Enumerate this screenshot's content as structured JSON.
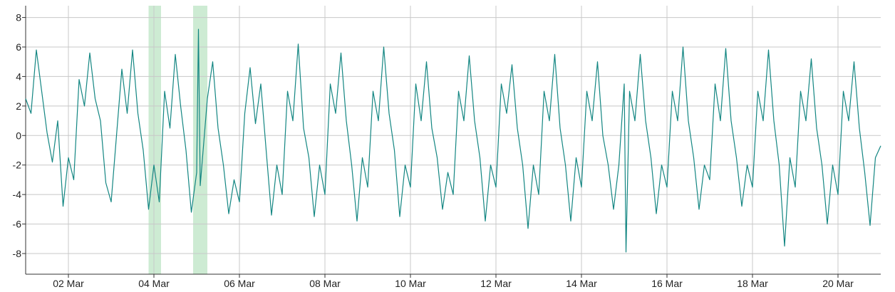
{
  "chart_data": {
    "type": "line",
    "title": "",
    "xlabel": "",
    "ylabel": "",
    "x_range": [
      "2024-03-01 00:00",
      "2024-03-21 00:00"
    ],
    "ylim": [
      -9.4,
      8.8
    ],
    "y_ticks": [
      -8,
      -6,
      -4,
      -2,
      0,
      2,
      4,
      6,
      8
    ],
    "y_tick_labels": [
      "-8",
      "-6",
      "-4",
      "-2",
      "0",
      "2",
      "4",
      "6",
      "8"
    ],
    "x_ticks": [
      "2024-03-02",
      "2024-03-04",
      "2024-03-06",
      "2024-03-08",
      "2024-03-10",
      "2024-03-12",
      "2024-03-14",
      "2024-03-16",
      "2024-03-18",
      "2024-03-20"
    ],
    "x_tick_labels": [
      "02 Mar",
      "04 Mar",
      "06 Mar",
      "08 Mar",
      "10 Mar",
      "12 Mar",
      "14 Mar",
      "16 Mar",
      "18 Mar",
      "20 Mar"
    ],
    "grid": true,
    "legend": "none",
    "highlight_bands": [
      {
        "start": "2024-03-03 21:00",
        "end": "2024-03-04 04:00"
      },
      {
        "start": "2024-03-04 22:00",
        "end": "2024-03-05 06:00"
      }
    ],
    "series": [
      {
        "color": "#138682",
        "points": [
          [
            "2024-03-01 00:00",
            2.5
          ],
          [
            "2024-03-01 03:00",
            1.5
          ],
          [
            "2024-03-01 06:00",
            5.8
          ],
          [
            "2024-03-01 09:00",
            3.0
          ],
          [
            "2024-03-01 12:00",
            0.2
          ],
          [
            "2024-03-01 15:00",
            -1.8
          ],
          [
            "2024-03-01 18:00",
            1.0
          ],
          [
            "2024-03-01 21:00",
            -4.8
          ],
          [
            "2024-03-02 00:00",
            -1.5
          ],
          [
            "2024-03-02 03:00",
            -3.0
          ],
          [
            "2024-03-02 06:00",
            3.8
          ],
          [
            "2024-03-02 09:00",
            2.0
          ],
          [
            "2024-03-02 12:00",
            5.6
          ],
          [
            "2024-03-02 15:00",
            2.5
          ],
          [
            "2024-03-02 18:00",
            1.0
          ],
          [
            "2024-03-02 21:00",
            -3.2
          ],
          [
            "2024-03-03 00:00",
            -4.5
          ],
          [
            "2024-03-03 03:00",
            0.0
          ],
          [
            "2024-03-03 06:00",
            4.5
          ],
          [
            "2024-03-03 09:00",
            1.5
          ],
          [
            "2024-03-03 12:00",
            5.8
          ],
          [
            "2024-03-03 15:00",
            1.5
          ],
          [
            "2024-03-03 18:00",
            -1.0
          ],
          [
            "2024-03-03 21:00",
            -5.0
          ],
          [
            "2024-03-04 00:00",
            -2.0
          ],
          [
            "2024-03-04 03:00",
            -4.5
          ],
          [
            "2024-03-04 06:00",
            3.0
          ],
          [
            "2024-03-04 09:00",
            0.5
          ],
          [
            "2024-03-04 12:00",
            5.5
          ],
          [
            "2024-03-04 15:00",
            2.0
          ],
          [
            "2024-03-04 18:00",
            -1.0
          ],
          [
            "2024-03-04 21:00",
            -5.2
          ],
          [
            "2024-03-05 00:00",
            -2.5
          ],
          [
            "2024-03-05 01:00",
            7.2
          ],
          [
            "2024-03-05 02:00",
            -3.4
          ],
          [
            "2024-03-05 06:00",
            2.5
          ],
          [
            "2024-03-05 09:00",
            5.0
          ],
          [
            "2024-03-05 12:00",
            0.5
          ],
          [
            "2024-03-05 15:00",
            -2.0
          ],
          [
            "2024-03-05 18:00",
            -5.3
          ],
          [
            "2024-03-05 21:00",
            -3.0
          ],
          [
            "2024-03-06 00:00",
            -4.5
          ],
          [
            "2024-03-06 03:00",
            1.5
          ],
          [
            "2024-03-06 06:00",
            4.6
          ],
          [
            "2024-03-06 09:00",
            0.8
          ],
          [
            "2024-03-06 12:00",
            3.5
          ],
          [
            "2024-03-06 15:00",
            -1.0
          ],
          [
            "2024-03-06 18:00",
            -5.4
          ],
          [
            "2024-03-06 21:00",
            -2.0
          ],
          [
            "2024-03-07 00:00",
            -4.0
          ],
          [
            "2024-03-07 03:00",
            3.0
          ],
          [
            "2024-03-07 06:00",
            1.0
          ],
          [
            "2024-03-07 09:00",
            6.2
          ],
          [
            "2024-03-07 12:00",
            0.5
          ],
          [
            "2024-03-07 15:00",
            -1.5
          ],
          [
            "2024-03-07 18:00",
            -5.5
          ],
          [
            "2024-03-07 21:00",
            -2.0
          ],
          [
            "2024-03-08 00:00",
            -4.0
          ],
          [
            "2024-03-08 03:00",
            3.5
          ],
          [
            "2024-03-08 06:00",
            1.5
          ],
          [
            "2024-03-08 09:00",
            5.6
          ],
          [
            "2024-03-08 12:00",
            1.0
          ],
          [
            "2024-03-08 15:00",
            -2.0
          ],
          [
            "2024-03-08 18:00",
            -5.8
          ],
          [
            "2024-03-08 21:00",
            -1.5
          ],
          [
            "2024-03-09 00:00",
            -3.5
          ],
          [
            "2024-03-09 03:00",
            3.0
          ],
          [
            "2024-03-09 06:00",
            1.0
          ],
          [
            "2024-03-09 09:00",
            6.0
          ],
          [
            "2024-03-09 12:00",
            1.5
          ],
          [
            "2024-03-09 15:00",
            -1.0
          ],
          [
            "2024-03-09 18:00",
            -5.5
          ],
          [
            "2024-03-09 21:00",
            -2.0
          ],
          [
            "2024-03-10 00:00",
            -3.5
          ],
          [
            "2024-03-10 03:00",
            3.5
          ],
          [
            "2024-03-10 06:00",
            1.0
          ],
          [
            "2024-03-10 09:00",
            5.0
          ],
          [
            "2024-03-10 12:00",
            0.5
          ],
          [
            "2024-03-10 15:00",
            -1.5
          ],
          [
            "2024-03-10 18:00",
            -5.0
          ],
          [
            "2024-03-10 21:00",
            -2.5
          ],
          [
            "2024-03-11 00:00",
            -4.0
          ],
          [
            "2024-03-11 03:00",
            3.0
          ],
          [
            "2024-03-11 06:00",
            1.0
          ],
          [
            "2024-03-11 09:00",
            5.4
          ],
          [
            "2024-03-11 12:00",
            1.0
          ],
          [
            "2024-03-11 15:00",
            -1.5
          ],
          [
            "2024-03-11 18:00",
            -5.8
          ],
          [
            "2024-03-11 21:00",
            -2.0
          ],
          [
            "2024-03-12 00:00",
            -3.5
          ],
          [
            "2024-03-12 03:00",
            3.5
          ],
          [
            "2024-03-12 06:00",
            1.5
          ],
          [
            "2024-03-12 09:00",
            4.8
          ],
          [
            "2024-03-12 12:00",
            0.5
          ],
          [
            "2024-03-12 15:00",
            -2.0
          ],
          [
            "2024-03-12 18:00",
            -6.3
          ],
          [
            "2024-03-12 21:00",
            -2.0
          ],
          [
            "2024-03-13 00:00",
            -4.0
          ],
          [
            "2024-03-13 03:00",
            3.0
          ],
          [
            "2024-03-13 06:00",
            1.0
          ],
          [
            "2024-03-13 09:00",
            5.5
          ],
          [
            "2024-03-13 12:00",
            0.5
          ],
          [
            "2024-03-13 15:00",
            -2.0
          ],
          [
            "2024-03-13 18:00",
            -5.8
          ],
          [
            "2024-03-13 21:00",
            -1.5
          ],
          [
            "2024-03-14 00:00",
            -3.5
          ],
          [
            "2024-03-14 03:00",
            3.0
          ],
          [
            "2024-03-14 06:00",
            1.0
          ],
          [
            "2024-03-14 09:00",
            5.0
          ],
          [
            "2024-03-14 12:00",
            0.0
          ],
          [
            "2024-03-14 15:00",
            -2.0
          ],
          [
            "2024-03-14 18:00",
            -5.0
          ],
          [
            "2024-03-14 21:00",
            -2.0
          ],
          [
            "2024-03-15 00:00",
            3.5
          ],
          [
            "2024-03-15 01:00",
            -7.9
          ],
          [
            "2024-03-15 03:00",
            3.0
          ],
          [
            "2024-03-15 06:00",
            1.0
          ],
          [
            "2024-03-15 09:00",
            5.5
          ],
          [
            "2024-03-15 12:00",
            1.0
          ],
          [
            "2024-03-15 15:00",
            -1.5
          ],
          [
            "2024-03-15 18:00",
            -5.3
          ],
          [
            "2024-03-15 21:00",
            -2.0
          ],
          [
            "2024-03-16 00:00",
            -3.5
          ],
          [
            "2024-03-16 03:00",
            3.0
          ],
          [
            "2024-03-16 06:00",
            1.0
          ],
          [
            "2024-03-16 09:00",
            6.0
          ],
          [
            "2024-03-16 12:00",
            1.0
          ],
          [
            "2024-03-16 15:00",
            -1.5
          ],
          [
            "2024-03-16 18:00",
            -5.0
          ],
          [
            "2024-03-16 21:00",
            -2.0
          ],
          [
            "2024-03-17 00:00",
            -3.0
          ],
          [
            "2024-03-17 03:00",
            3.5
          ],
          [
            "2024-03-17 06:00",
            1.0
          ],
          [
            "2024-03-17 09:00",
            5.9
          ],
          [
            "2024-03-17 12:00",
            1.0
          ],
          [
            "2024-03-17 15:00",
            -1.5
          ],
          [
            "2024-03-17 18:00",
            -4.8
          ],
          [
            "2024-03-17 21:00",
            -2.0
          ],
          [
            "2024-03-18 00:00",
            -3.5
          ],
          [
            "2024-03-18 03:00",
            3.0
          ],
          [
            "2024-03-18 06:00",
            1.0
          ],
          [
            "2024-03-18 09:00",
            5.8
          ],
          [
            "2024-03-18 12:00",
            1.0
          ],
          [
            "2024-03-18 15:00",
            -2.0
          ],
          [
            "2024-03-18 18:00",
            -7.5
          ],
          [
            "2024-03-18 21:00",
            -1.5
          ],
          [
            "2024-03-19 00:00",
            -3.5
          ],
          [
            "2024-03-19 03:00",
            3.0
          ],
          [
            "2024-03-19 06:00",
            1.0
          ],
          [
            "2024-03-19 09:00",
            5.2
          ],
          [
            "2024-03-19 12:00",
            0.5
          ],
          [
            "2024-03-19 15:00",
            -2.0
          ],
          [
            "2024-03-19 18:00",
            -6.0
          ],
          [
            "2024-03-19 21:00",
            -2.0
          ],
          [
            "2024-03-20 00:00",
            -4.0
          ],
          [
            "2024-03-20 03:00",
            3.0
          ],
          [
            "2024-03-20 06:00",
            1.0
          ],
          [
            "2024-03-20 09:00",
            5.0
          ],
          [
            "2024-03-20 12:00",
            0.5
          ],
          [
            "2024-03-20 15:00",
            -2.5
          ],
          [
            "2024-03-20 18:00",
            -6.1
          ],
          [
            "2024-03-20 21:00",
            -1.5
          ],
          [
            "2024-03-21 00:00",
            -0.7
          ]
        ]
      }
    ]
  }
}
